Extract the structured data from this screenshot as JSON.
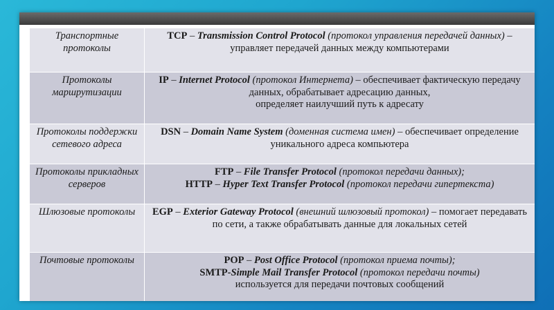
{
  "rows": [
    {
      "category": "Транспортные протоколы",
      "lines": [
        {
          "abbr": "TCP",
          "sep": " – ",
          "full": "Transmission Control Protocol",
          "note": " (протокол управления передачей данных)",
          "rest": " – управляет передачей данных между компьютерами"
        }
      ]
    },
    {
      "category": "Протоколы маршрутизации",
      "lines": [
        {
          "abbr": "IP",
          "sep": " – ",
          "full": "Internet Protocol",
          "note": " (протокол Интернета)",
          "rest": " – обеспечивает фактическую передачу данных, обрабатывает адресацию данных,"
        },
        {
          "rest2": "определяет наилучший путь к адресату"
        }
      ]
    },
    {
      "category": "Протоколы поддержки сетевого адреса",
      "lines": [
        {
          "abbr": "DSN",
          "sep": " – ",
          "full": "Domain Name System",
          "note": " (доменная система имен)",
          "rest": " – обеспечивает определение уникального адреса компьютера"
        }
      ]
    },
    {
      "category": "Протоколы прикладных серверов",
      "lines": [
        {
          "abbr": "FTP",
          "sep": " – ",
          "full": "File Transfer Protocol",
          "note": " (протокол передачи данных);"
        },
        {
          "abbr": "HTTP",
          "sep": " – ",
          "full": "Hyper Text Transfer Protocol",
          "note": " (протокол передачи гипертекста)"
        }
      ]
    },
    {
      "category": "Шлюзовые протоколы",
      "lines": [
        {
          "abbr": "EGP",
          "sep": " – ",
          "full": "Exterior Gateway Protocol",
          "note": " (внешний шлюзовый протокол)",
          "rest": " – помогает передавать по сети, а также обрабатывать данные для локальных сетей"
        }
      ]
    },
    {
      "category": "Почтовые протоколы",
      "lines": [
        {
          "abbr": "POP",
          "sep": " – ",
          "full": "Post Office Protocol",
          "note": " (протокол приема почты);"
        },
        {
          "abbr": "SMTP",
          "sep": "-",
          "full": "Simple Mail Transfer Protocol",
          "note": " (протокол передачи почты)",
          "rest": " используется для передачи почтовых сообщений"
        }
      ]
    }
  ]
}
